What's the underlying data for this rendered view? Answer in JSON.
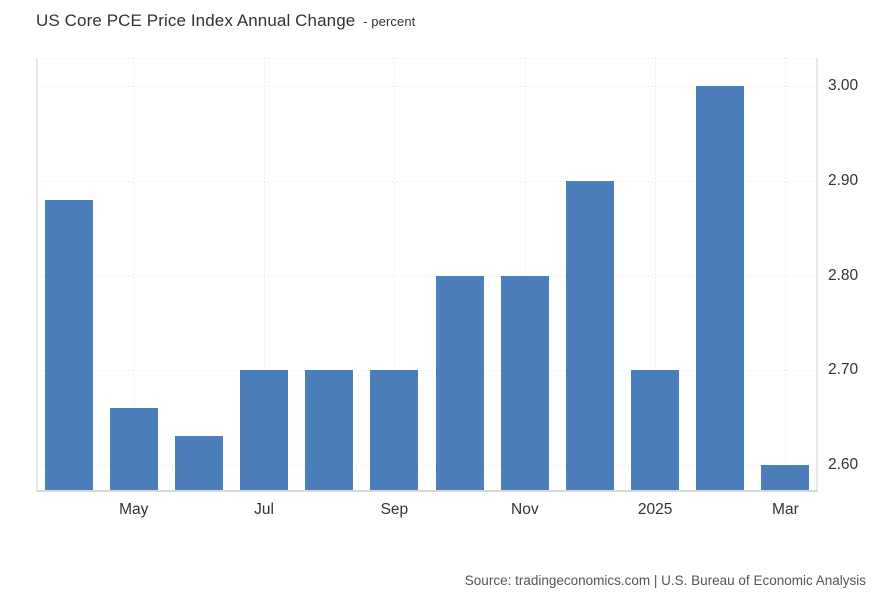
{
  "title": {
    "main": "US Core PCE Price Index Annual Change",
    "suffix": "- percent"
  },
  "source_note": "Source: tradingeconomics.com | U.S. Bureau of Economic Analysis",
  "colors": {
    "bar": "#4D7EBC",
    "grid": "#E2E2E2",
    "plot_border": "#E9E9E9",
    "axis_line": "#D8D8D8",
    "text": "#333333",
    "source_text": "#555555",
    "background": "#FFFFFF"
  },
  "chart_data": {
    "type": "bar",
    "title": "US Core PCE Price Index Annual Change",
    "subtitle": "percent",
    "series": [
      {
        "name": "US Core PCE Price Index Annual Change",
        "values": [
          2.88,
          2.66,
          2.63,
          2.7,
          2.7,
          2.7,
          2.8,
          2.8,
          2.9,
          2.7,
          3.0,
          2.6
        ]
      }
    ],
    "bar_count": 12,
    "x_tick_labels": [
      "May",
      "Jul",
      "Sep",
      "Nov",
      "2025",
      "Mar"
    ],
    "x_tick_bar_indices": [
      1,
      3,
      5,
      7,
      9,
      11
    ],
    "y_tick_labels": [
      "2.60",
      "2.70",
      "2.80",
      "2.90",
      "3.00"
    ],
    "ylim": [
      2.571,
      3.03
    ],
    "y_axis_side": "right",
    "grid": true,
    "legend": false
  }
}
